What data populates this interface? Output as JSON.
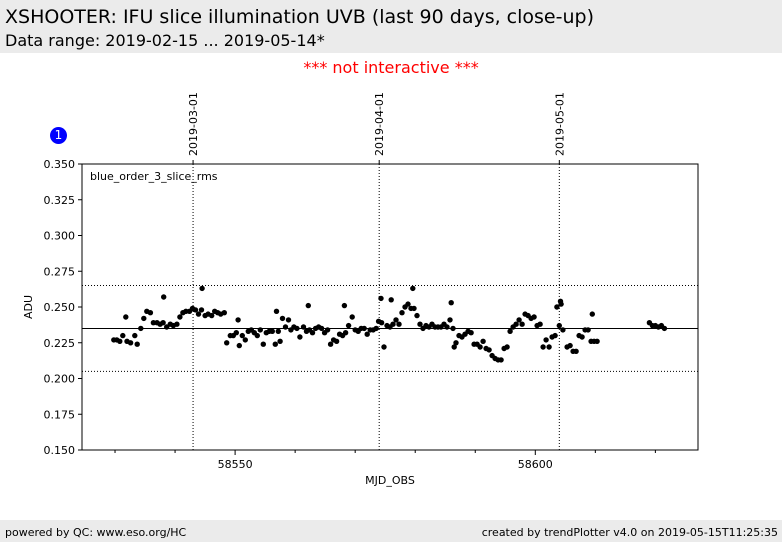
{
  "header": {
    "title": "XSHOOTER: IFU slice illumination UVB (last 90 days, close-up)",
    "subtitle": "Data range: 2019-02-15 ... 2019-05-14*"
  },
  "notice": "*** not interactive ***",
  "badge": "1",
  "footer": {
    "left": "powered by QC: www.eso.org/HC",
    "right": "created by trendPlotter v4.0 on 2019-05-15T11:25:35"
  },
  "colors": {
    "header_bg": "#ebebeb",
    "notice": "#ff0000",
    "badge": "#0000ff",
    "points": "#000000"
  },
  "chart_data": {
    "type": "scatter",
    "xlabel": "MJD_OBS",
    "ylabel": "ADU",
    "xlim": [
      58524.5,
      58627.1
    ],
    "ylim": [
      0.15,
      0.35
    ],
    "x_ticks": [
      58550,
      58600
    ],
    "x_tick_labels": [
      "58550",
      "58600"
    ],
    "x_minor_ticks": [
      58530,
      58540,
      58560,
      58570,
      58580,
      58590,
      58610,
      58620
    ],
    "y_ticks": [
      0.15,
      0.175,
      0.2,
      0.225,
      0.25,
      0.275,
      0.3,
      0.325,
      0.35
    ],
    "y_tick_labels": [
      "0.150",
      "0.175",
      "0.200",
      "0.225",
      "0.250",
      "0.275",
      "0.300",
      "0.325",
      "0.350"
    ],
    "date_markers": [
      {
        "x": 58543.0,
        "label": "2019-03-01"
      },
      {
        "x": 58574.0,
        "label": "2019-04-01"
      },
      {
        "x": 58604.0,
        "label": "2019-05-01"
      }
    ],
    "reference_line": 0.235,
    "limit_lines": [
      0.205,
      0.265
    ],
    "series": [
      {
        "name": "blue_order_3_slice_rms",
        "color": "#000000",
        "points": [
          [
            58529.8,
            0.227
          ],
          [
            58530.3,
            0.227
          ],
          [
            58530.8,
            0.226
          ],
          [
            58531.3,
            0.23
          ],
          [
            58531.8,
            0.243
          ],
          [
            58532.0,
            0.226
          ],
          [
            58532.6,
            0.225
          ],
          [
            58533.3,
            0.23
          ],
          [
            58533.7,
            0.224
          ],
          [
            58534.3,
            0.235
          ],
          [
            58534.8,
            0.242
          ],
          [
            58535.3,
            0.247
          ],
          [
            58535.9,
            0.246
          ],
          [
            58536.4,
            0.239
          ],
          [
            58537.0,
            0.239
          ],
          [
            58537.5,
            0.238
          ],
          [
            58538.0,
            0.239
          ],
          [
            58538.1,
            0.257
          ],
          [
            58538.6,
            0.236
          ],
          [
            58539.2,
            0.238
          ],
          [
            58539.7,
            0.237
          ],
          [
            58540.3,
            0.238
          ],
          [
            58540.8,
            0.243
          ],
          [
            58541.3,
            0.246
          ],
          [
            58541.8,
            0.247
          ],
          [
            58542.4,
            0.247
          ],
          [
            58542.9,
            0.249
          ],
          [
            58543.4,
            0.248
          ],
          [
            58543.9,
            0.245
          ],
          [
            58544.4,
            0.248
          ],
          [
            58544.5,
            0.263
          ],
          [
            58545.0,
            0.244
          ],
          [
            58545.5,
            0.245
          ],
          [
            58546.1,
            0.244
          ],
          [
            58546.6,
            0.247
          ],
          [
            58547.1,
            0.246
          ],
          [
            58547.6,
            0.245
          ],
          [
            58548.2,
            0.246
          ],
          [
            58548.6,
            0.225
          ],
          [
            58549.2,
            0.23
          ],
          [
            58549.7,
            0.23
          ],
          [
            58550.2,
            0.232
          ],
          [
            58550.5,
            0.241
          ],
          [
            58550.7,
            0.223
          ],
          [
            58551.2,
            0.23
          ],
          [
            58551.7,
            0.227
          ],
          [
            58552.2,
            0.233
          ],
          [
            58552.7,
            0.234
          ],
          [
            58553.2,
            0.232
          ],
          [
            58553.7,
            0.23
          ],
          [
            58554.2,
            0.234
          ],
          [
            58554.7,
            0.224
          ],
          [
            58555.2,
            0.232
          ],
          [
            58555.7,
            0.233
          ],
          [
            58556.2,
            0.233
          ],
          [
            58556.7,
            0.224
          ],
          [
            58556.9,
            0.247
          ],
          [
            58557.2,
            0.233
          ],
          [
            58557.5,
            0.226
          ],
          [
            58557.9,
            0.242
          ],
          [
            58558.4,
            0.236
          ],
          [
            58558.9,
            0.241
          ],
          [
            58559.3,
            0.234
          ],
          [
            58559.8,
            0.236
          ],
          [
            58560.3,
            0.235
          ],
          [
            58560.8,
            0.229
          ],
          [
            58561.4,
            0.236
          ],
          [
            58561.9,
            0.233
          ],
          [
            58562.2,
            0.251
          ],
          [
            58562.4,
            0.234
          ],
          [
            58562.9,
            0.232
          ],
          [
            58563.4,
            0.235
          ],
          [
            58563.9,
            0.236
          ],
          [
            58564.4,
            0.235
          ],
          [
            58564.9,
            0.232
          ],
          [
            58565.4,
            0.234
          ],
          [
            58565.9,
            0.224
          ],
          [
            58566.4,
            0.227
          ],
          [
            58566.9,
            0.226
          ],
          [
            58567.4,
            0.231
          ],
          [
            58567.9,
            0.23
          ],
          [
            58568.2,
            0.251
          ],
          [
            58568.4,
            0.232
          ],
          [
            58568.9,
            0.237
          ],
          [
            58569.5,
            0.243
          ],
          [
            58570.0,
            0.234
          ],
          [
            58570.5,
            0.233
          ],
          [
            58571.0,
            0.235
          ],
          [
            58571.5,
            0.235
          ],
          [
            58572.0,
            0.231
          ],
          [
            58572.5,
            0.234
          ],
          [
            58573.0,
            0.234
          ],
          [
            58573.5,
            0.235
          ],
          [
            58573.9,
            0.24
          ],
          [
            58574.3,
            0.256
          ],
          [
            58574.4,
            0.239
          ],
          [
            58574.8,
            0.222
          ],
          [
            58575.3,
            0.237
          ],
          [
            58575.8,
            0.236
          ],
          [
            58576.0,
            0.255
          ],
          [
            58576.3,
            0.238
          ],
          [
            58576.8,
            0.241
          ],
          [
            58577.3,
            0.238
          ],
          [
            58577.8,
            0.246
          ],
          [
            58578.3,
            0.25
          ],
          [
            58578.8,
            0.252
          ],
          [
            58579.3,
            0.249
          ],
          [
            58579.6,
            0.263
          ],
          [
            58579.8,
            0.249
          ],
          [
            58580.3,
            0.244
          ],
          [
            58580.8,
            0.238
          ],
          [
            58581.3,
            0.235
          ],
          [
            58581.8,
            0.237
          ],
          [
            58582.3,
            0.236
          ],
          [
            58582.8,
            0.238
          ],
          [
            58583.3,
            0.236
          ],
          [
            58583.8,
            0.236
          ],
          [
            58584.3,
            0.236
          ],
          [
            58584.8,
            0.238
          ],
          [
            58585.3,
            0.236
          ],
          [
            58585.8,
            0.241
          ],
          [
            58586.0,
            0.253
          ],
          [
            58586.3,
            0.235
          ],
          [
            58586.5,
            0.222
          ],
          [
            58586.8,
            0.225
          ],
          [
            58587.3,
            0.23
          ],
          [
            58587.8,
            0.229
          ],
          [
            58588.3,
            0.231
          ],
          [
            58588.8,
            0.233
          ],
          [
            58589.3,
            0.232
          ],
          [
            58589.8,
            0.224
          ],
          [
            58590.3,
            0.224
          ],
          [
            58590.8,
            0.222
          ],
          [
            58591.3,
            0.226
          ],
          [
            58591.8,
            0.221
          ],
          [
            58592.3,
            0.22
          ],
          [
            58592.8,
            0.216
          ],
          [
            58593.3,
            0.214
          ],
          [
            58593.8,
            0.213
          ],
          [
            58594.3,
            0.213
          ],
          [
            58594.8,
            0.221
          ],
          [
            58595.3,
            0.222
          ],
          [
            58595.8,
            0.233
          ],
          [
            58596.3,
            0.236
          ],
          [
            58596.8,
            0.238
          ],
          [
            58597.3,
            0.241
          ],
          [
            58597.8,
            0.238
          ],
          [
            58598.3,
            0.245
          ],
          [
            58598.8,
            0.244
          ],
          [
            58599.3,
            0.242
          ],
          [
            58599.8,
            0.243
          ],
          [
            58600.3,
            0.237
          ],
          [
            58600.8,
            0.238
          ],
          [
            58601.3,
            0.222
          ],
          [
            58601.8,
            0.227
          ],
          [
            58602.3,
            0.222
          ],
          [
            58602.8,
            0.229
          ],
          [
            58603.3,
            0.23
          ],
          [
            58603.6,
            0.25
          ],
          [
            58604.0,
            0.237
          ],
          [
            58604.2,
            0.254
          ],
          [
            58604.3,
            0.252
          ],
          [
            58604.6,
            0.234
          ],
          [
            58605.3,
            0.222
          ],
          [
            58605.8,
            0.223
          ],
          [
            58606.3,
            0.219
          ],
          [
            58606.8,
            0.219
          ],
          [
            58607.3,
            0.23
          ],
          [
            58607.8,
            0.229
          ],
          [
            58608.3,
            0.234
          ],
          [
            58608.8,
            0.234
          ],
          [
            58609.3,
            0.226
          ],
          [
            58609.5,
            0.245
          ],
          [
            58609.8,
            0.226
          ],
          [
            58610.3,
            0.226
          ],
          [
            58619.0,
            0.239
          ],
          [
            58619.5,
            0.237
          ],
          [
            58620.0,
            0.237
          ],
          [
            58620.5,
            0.236
          ],
          [
            58621.0,
            0.237
          ],
          [
            58621.5,
            0.235
          ]
        ]
      }
    ]
  }
}
